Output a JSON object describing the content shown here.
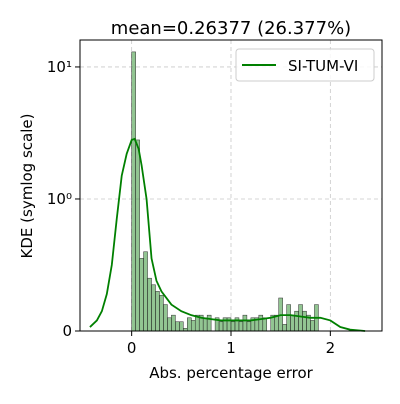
{
  "chart_data": {
    "type": "bar",
    "title": "mean=0.26377 (26.377%)",
    "xlabel": "Abs. percentage error",
    "ylabel": "KDE (symlog scale)",
    "yscale": "symlog",
    "linthresh": 1,
    "xlim": [
      -0.52,
      2.52
    ],
    "ylim": [
      0,
      16
    ],
    "xticks": [
      {
        "value": 0,
        "label": "0"
      },
      {
        "value": 1,
        "label": "1"
      },
      {
        "value": 2,
        "label": "2"
      }
    ],
    "yticks": [
      {
        "value": 0,
        "label": "0"
      },
      {
        "value": 1,
        "label": "10⁰"
      },
      {
        "value": 10,
        "label": "10¹"
      }
    ],
    "grid": true,
    "legend_position": "top-right",
    "bar_color": "#4a9f4a",
    "line_color": "#008000",
    "histogram": {
      "bin_width": 0.04,
      "x_start": 0.0,
      "values": [
        13.0,
        2.8,
        0.55,
        0.6,
        0.4,
        0.35,
        0.3,
        0.27,
        0.2,
        0.1,
        0.12,
        0.07,
        0.07,
        0.02,
        0.1,
        0.08,
        0.12,
        0.12,
        0.1,
        0.12,
        0.0,
        0.1,
        0.07,
        0.1,
        0.1,
        0.07,
        0.1,
        0.07,
        0.12,
        0.07,
        0.1,
        0.1,
        0.12,
        0.1,
        0.0,
        0.12,
        0.12,
        0.25,
        0.05,
        0.2,
        0.12,
        0.15,
        0.2,
        0.15,
        0.12,
        0.08,
        0.2
      ]
    },
    "series": [
      {
        "name": "SI-TUM-VI",
        "x": [
          -0.42,
          -0.35,
          -0.3,
          -0.25,
          -0.2,
          -0.15,
          -0.1,
          -0.05,
          0.0,
          0.03,
          0.07,
          0.1,
          0.15,
          0.2,
          0.25,
          0.3,
          0.4,
          0.5,
          0.6,
          0.7,
          0.8,
          0.9,
          1.0,
          1.1,
          1.2,
          1.3,
          1.4,
          1.5,
          1.6,
          1.7,
          1.8,
          1.9,
          2.0,
          2.1,
          2.2,
          2.35
        ],
        "y": [
          0.03,
          0.08,
          0.15,
          0.28,
          0.5,
          0.85,
          1.5,
          2.2,
          2.8,
          2.85,
          2.4,
          1.8,
          1.0,
          0.55,
          0.38,
          0.3,
          0.2,
          0.15,
          0.12,
          0.1,
          0.09,
          0.08,
          0.08,
          0.08,
          0.08,
          0.09,
          0.1,
          0.12,
          0.12,
          0.11,
          0.1,
          0.1,
          0.08,
          0.03,
          0.01,
          0.0
        ]
      }
    ]
  }
}
